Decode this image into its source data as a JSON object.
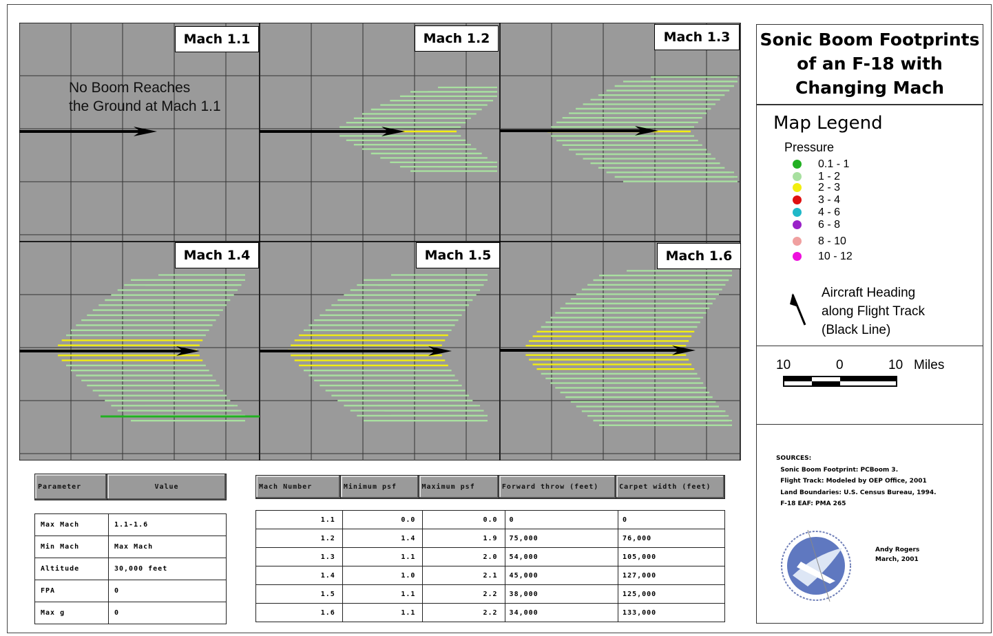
{
  "title": "Sonic Boom Footprints\nof an F-18 with\nChanging Mach",
  "panels": [
    {
      "label": "Mach 1.1",
      "note": "No Boom Reaches\nthe Ground at Mach 1.1"
    },
    {
      "label": "Mach 1.2"
    },
    {
      "label": "Mach 1.3"
    },
    {
      "label": "Mach 1.4"
    },
    {
      "label": "Mach 1.5"
    },
    {
      "label": "Mach 1.6"
    }
  ],
  "legend": {
    "heading": "Map Legend",
    "pressure_title": "Pressure",
    "pressure_classes": [
      {
        "label": "0.1 - 1",
        "color": "#22b022"
      },
      {
        "label": "1 - 2",
        "color": "#a8e0a0"
      },
      {
        "label": "2 - 3",
        "color": "#f2ee10"
      },
      {
        "label": "3 - 4",
        "color": "#e01010"
      },
      {
        "label": "4 - 6",
        "color": "#20b8c8"
      },
      {
        "label": "6 - 8",
        "color": "#9a22c8"
      },
      {
        "label": "8 - 10",
        "color": "#f0a0a0"
      },
      {
        "label": "10 - 12",
        "color": "#ee10dd"
      }
    ],
    "heading_symbol": "Aircraft Heading\nalong Flight Track\n(Black Line)",
    "scale": {
      "left": "10",
      "mid": "0",
      "right": "10",
      "units": "Miles"
    }
  },
  "sources": "SOURCES:\n  Sonic Boom Footprint: PCBoom 3.\n  Flight Track: Modeled by OEP Office, 2001\n  Land Boundaries: U.S. Census Bureau, 1994.\n  F-18 EAF: PMA 265",
  "author": "Andy Rogers\nMarch, 2001",
  "parameters_table": {
    "headers": [
      "Parameter",
      "Value"
    ],
    "rows": [
      [
        "Max Mach",
        "1.1-1.6"
      ],
      [
        "Min Mach",
        "Max Mach"
      ],
      [
        "Altitude",
        "30,000 feet"
      ],
      [
        "FPA",
        "0"
      ],
      [
        "Max g",
        "0"
      ]
    ]
  },
  "results_table": {
    "headers": [
      "Mach Number",
      "Minimum psf",
      "Maximum psf",
      "Forward throw (feet)",
      "Carpet width (feet)"
    ],
    "rows": [
      [
        "1.1",
        "0.0",
        "0.0",
        "0",
        "0"
      ],
      [
        "1.2",
        "1.4",
        "1.9",
        "75,000",
        "76,000"
      ],
      [
        "1.3",
        "1.1",
        "2.0",
        "54,000",
        "105,000"
      ],
      [
        "1.4",
        "1.0",
        "2.1",
        "45,000",
        "127,000"
      ],
      [
        "1.5",
        "1.1",
        "2.2",
        "38,000",
        "125,000"
      ],
      [
        "1.6",
        "1.1",
        "2.2",
        "34,000",
        "133,000"
      ]
    ]
  },
  "colors": {
    "map_background": "#9a9a9a",
    "grid": "#333333",
    "track": "#000000",
    "iso_green": "#a8e0a0",
    "iso_yellow": "#f2ee10",
    "iso_dark_green": "#22b022"
  }
}
